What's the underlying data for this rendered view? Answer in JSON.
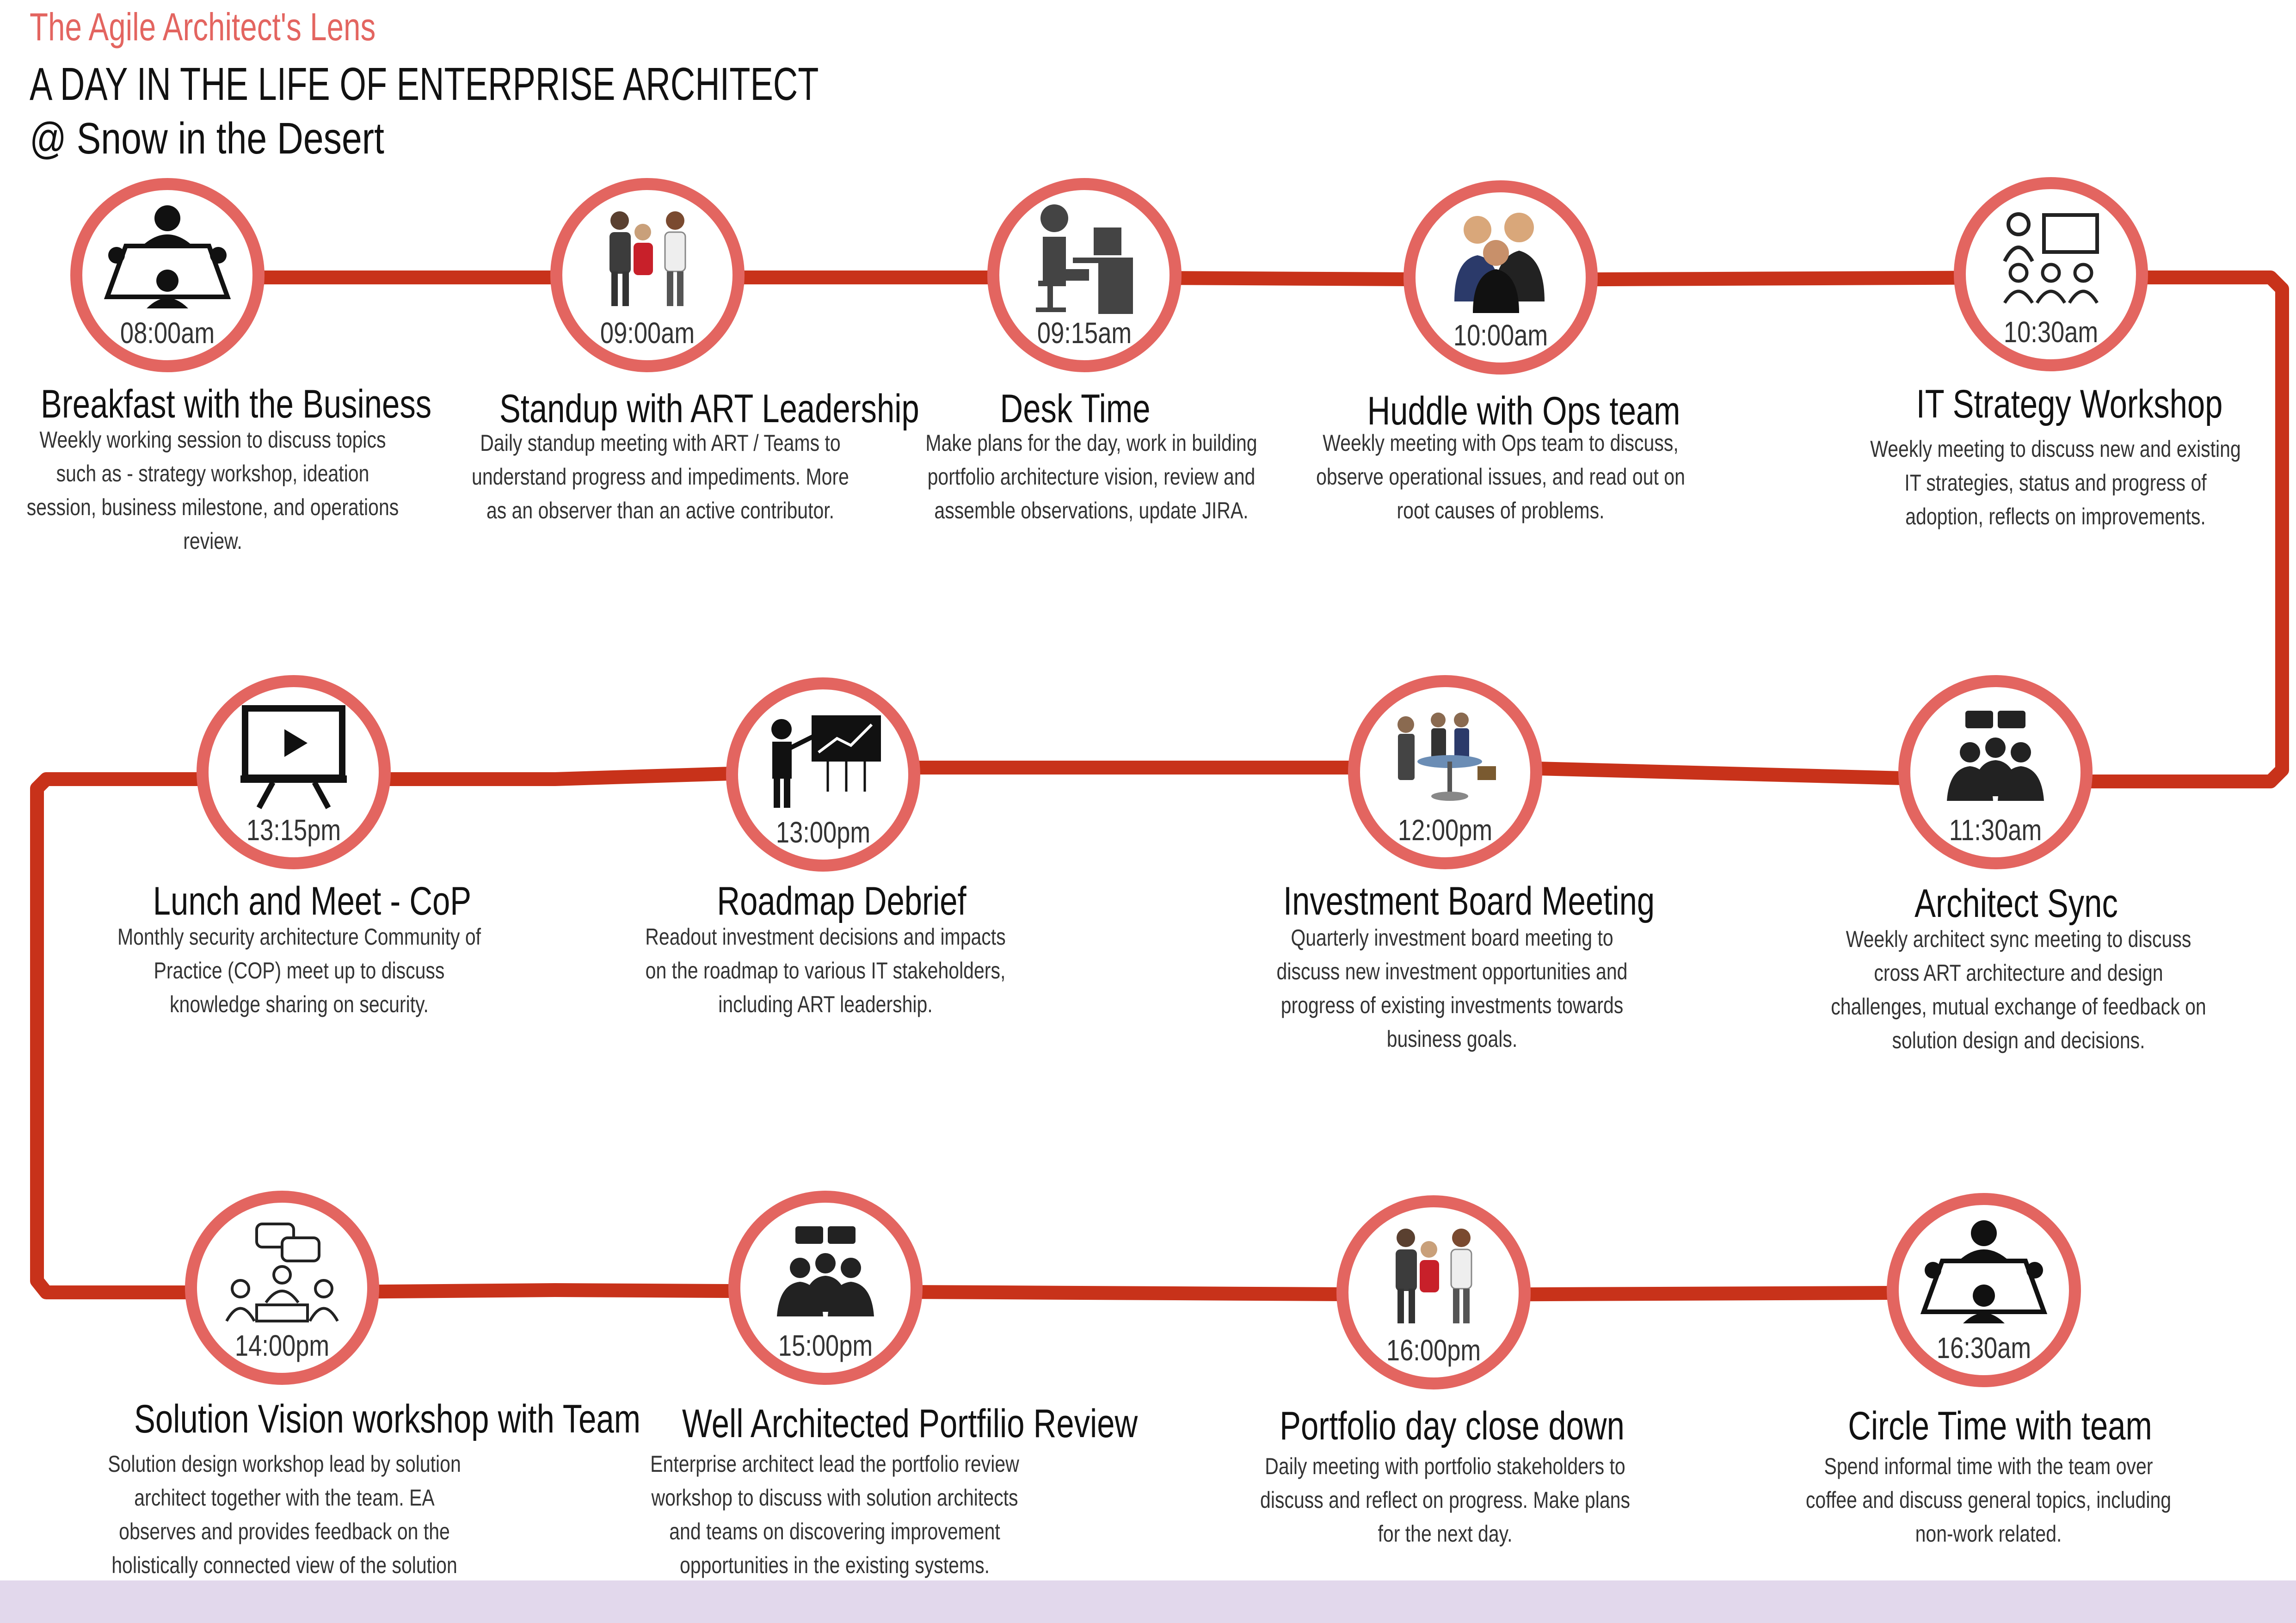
{
  "header": {
    "brand": "The Agile Architect's Lens",
    "title": "A DAY IN THE LIFE OF ENTERPRISE ARCHITECT",
    "subtitle": "@ Snow in the Desert"
  },
  "colors": {
    "ring": "#e36560",
    "path": "#c8321a",
    "footer": "#e2d8ec"
  },
  "events": [
    {
      "time": "08:00am",
      "title": "Breakfast with the Business",
      "icon": "meeting-table-icon",
      "description": "Weekly working session  to discuss topics such as - strategy workshop, ideation session, business milestone, and operations review."
    },
    {
      "time": "09:00am",
      "title": "Standup with ART Leadership",
      "icon": "standing-people-icon",
      "description": "Daily standup meeting with ART / Teams to understand progress and impediments. More as an observer than an active contributor."
    },
    {
      "time": "09:15am",
      "title": "Desk Time",
      "icon": "desk-worker-icon",
      "description": "Make plans for the day,  work in building portfolio architecture vision, review and assemble observations, update JIRA."
    },
    {
      "time": "10:00am",
      "title": "Huddle with Ops team",
      "icon": "huddle-icon",
      "description": "Weekly meeting with Ops team to discuss, observe operational issues, and read out on root causes of problems."
    },
    {
      "time": "10:30am",
      "title": "IT Strategy Workshop",
      "icon": "workshop-icon",
      "description": "Weekly meeting to discuss new and existing IT strategies, status and progress of adoption, reflects on improvements."
    },
    {
      "time": "11:30am",
      "title": "Architect Sync",
      "icon": "team-chat-icon",
      "description": "Weekly architect sync meeting to discuss cross ART architecture and design challenges, mutual exchange of feedback on solution design and decisions."
    },
    {
      "time": "12:00pm",
      "title": "Investment Board Meeting",
      "icon": "board-meeting-icon",
      "description": "Quarterly investment board meeting to discuss new investment opportunities and progress of existing investments towards business goals."
    },
    {
      "time": "13:00pm",
      "title": "Roadmap Debrief",
      "icon": "presenter-chart-icon",
      "description": "Readout investment decisions and impacts on the roadmap to various IT stakeholders, including ART leadership."
    },
    {
      "time": "13:15pm",
      "title": "Lunch and Meet - CoP",
      "icon": "video-screen-icon",
      "description": "Monthly security architecture Community of Practice (COP) meet up to discuss knowledge sharing on security."
    },
    {
      "time": "14:00pm",
      "title": "Solution Vision workshop with Team",
      "icon": "discussion-group-icon",
      "description": "Solution design workshop lead by solution architect together with the team. EA observes and provides feedback on the holistically connected view of the solution and business objectives."
    },
    {
      "time": "15:00pm",
      "title": "Well Architected Portfilio Review",
      "icon": "team-chat-icon",
      "description": "Enterprise architect lead the portfolio review workshop to discuss with solution architects and teams on discovering improvement opportunities in the existing systems."
    },
    {
      "time": "16:00pm",
      "title": "Portfolio day close down",
      "icon": "standing-people-icon",
      "description": "Daily meeting with portfolio stakeholders to discuss and  reflect on progress. Make plans for the next day."
    },
    {
      "time": "16:30am",
      "title": "Circle Time with team",
      "icon": "meeting-table-icon",
      "description": "Spend informal time with the team over coffee and discuss general topics, including non-work related."
    }
  ]
}
